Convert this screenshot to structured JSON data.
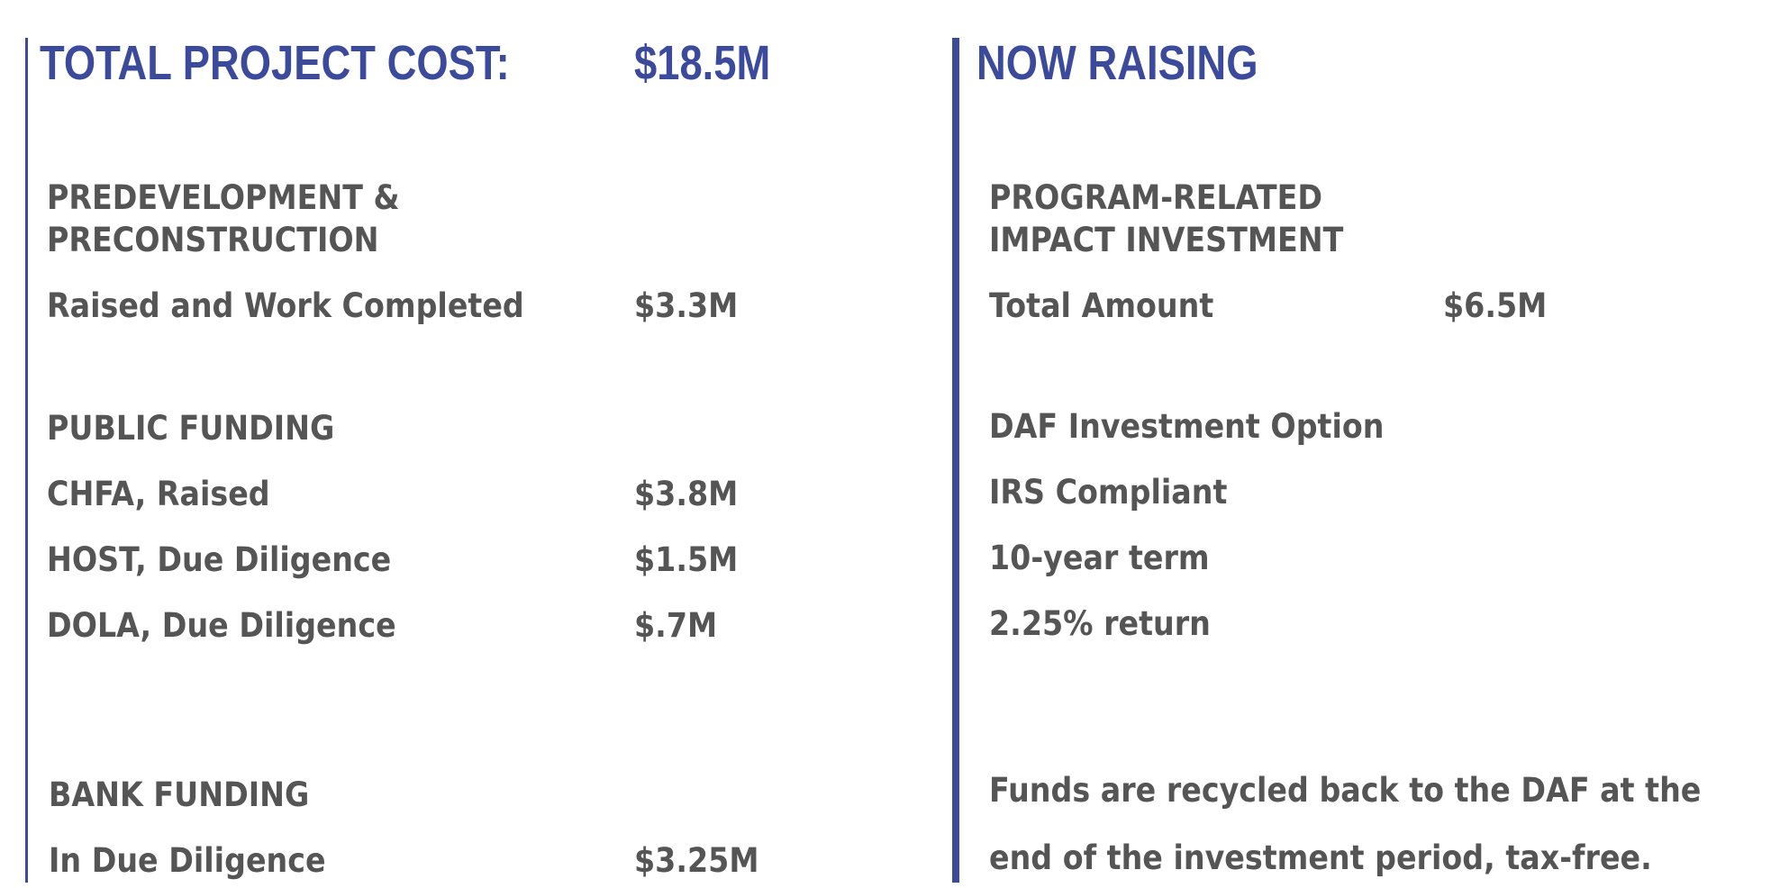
{
  "left": {
    "title": "TOTAL PROJECT COST:",
    "total": "$18.5M",
    "predevelopment": {
      "heading_line1": "PREDEVELOPMENT &",
      "heading_line2": "PRECONSTRUCTION",
      "item_label": "Raised and Work Completed",
      "item_value": "$3.3M"
    },
    "public_funding": {
      "heading": "PUBLIC FUNDING",
      "items": [
        {
          "label": "CHFA, Raised",
          "value": "$3.8M"
        },
        {
          "label": "HOST, Due Diligence",
          "value": "$1.5M"
        },
        {
          "label": "DOLA, Due Diligence",
          "value": "$.7M"
        }
      ]
    },
    "bank_funding": {
      "heading": "BANK FUNDING",
      "item_label": "In Due Diligence",
      "item_value": "$3.25M"
    }
  },
  "right": {
    "title": "NOW RAISING",
    "program": {
      "heading_line1": "PROGRAM-RELATED",
      "heading_line2": "IMPACT INVESTMENT",
      "item_label": "Total Amount",
      "item_value": "$6.5M"
    },
    "daf": {
      "lines": [
        "DAF Investment Option",
        "IRS Compliant",
        "10-year term",
        "2.25% return"
      ]
    },
    "note": {
      "line1": "Funds are recycled back to the DAF at the",
      "line2": "end of the investment period, tax-free."
    }
  },
  "colors": {
    "accent": "#3b4a9b",
    "text": "#555555"
  }
}
